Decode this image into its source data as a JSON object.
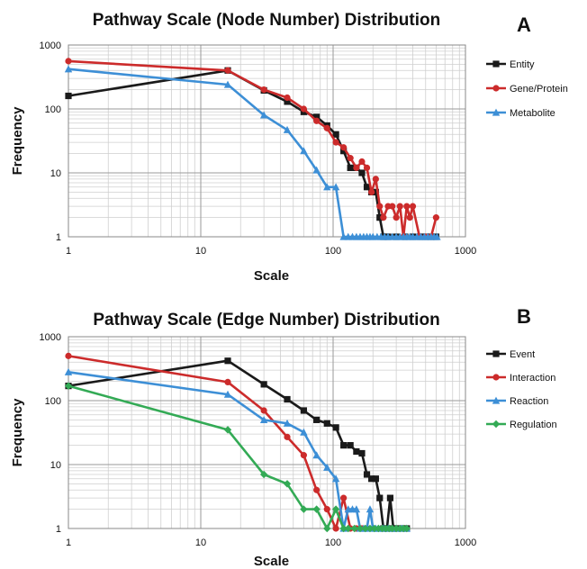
{
  "chart_data": [
    {
      "type": "line",
      "title": "Pathway Scale (Node Number) Distribution",
      "panel_label": "A",
      "xlabel": "Scale",
      "ylabel": "Frequency",
      "x_scale": "log",
      "y_scale": "log",
      "xlim": [
        1,
        1000
      ],
      "ylim": [
        1,
        1000
      ],
      "x_ticks": [
        "1",
        "10",
        "100",
        "1000"
      ],
      "y_ticks": [
        "1",
        "10",
        "100",
        "1000"
      ],
      "grid": true,
      "legend_position": "right",
      "series": [
        {
          "name": "Entity",
          "color": "#1a1a1a",
          "marker": "square",
          "x": [
            1,
            16,
            30,
            45,
            60,
            75,
            90,
            105,
            120,
            135,
            150,
            165,
            180,
            195,
            210,
            225,
            240,
            260,
            300,
            350,
            400,
            450,
            500,
            550,
            600
          ],
          "y": [
            160,
            400,
            195,
            130,
            90,
            75,
            55,
            40,
            22,
            12,
            12,
            10,
            6,
            5,
            5,
            2,
            1,
            1,
            1,
            1,
            1,
            1,
            1,
            1,
            1
          ]
        },
        {
          "name": "Gene/Protein",
          "color": "#cc2b2b",
          "marker": "circle",
          "x": [
            1,
            16,
            30,
            45,
            60,
            75,
            90,
            105,
            120,
            135,
            150,
            165,
            180,
            195,
            210,
            225,
            240,
            260,
            280,
            300,
            320,
            340,
            360,
            380,
            400,
            450,
            500,
            550,
            600
          ],
          "y": [
            560,
            400,
            200,
            150,
            100,
            65,
            50,
            30,
            25,
            17,
            12,
            15,
            12,
            5,
            8,
            3,
            2,
            3,
            3,
            2,
            3,
            1,
            3,
            2,
            3,
            1,
            1,
            1,
            2
          ]
        },
        {
          "name": "Metabolite",
          "color": "#3d8fd6",
          "marker": "triangle",
          "x": [
            1,
            16,
            30,
            45,
            60,
            75,
            90,
            105,
            120,
            130,
            140,
            150,
            160,
            170,
            180,
            190,
            200,
            215,
            230,
            245,
            260,
            280,
            300,
            320,
            340,
            360,
            380,
            400,
            430,
            460,
            490,
            520,
            550,
            580,
            610
          ],
          "y": [
            420,
            240,
            80,
            47,
            22,
            11,
            6,
            6,
            1,
            1,
            1,
            1,
            1,
            1,
            1,
            1,
            1,
            1,
            1,
            1,
            1,
            1,
            1,
            1,
            1,
            1,
            1,
            1,
            1,
            1,
            1,
            1,
            1,
            1,
            1
          ]
        }
      ]
    },
    {
      "type": "line",
      "title": "Pathway Scale (Edge Number) Distribution",
      "panel_label": "B",
      "xlabel": "Scale",
      "ylabel": "Frequency",
      "x_scale": "log",
      "y_scale": "log",
      "xlim": [
        1,
        1000
      ],
      "ylim": [
        1,
        1000
      ],
      "x_ticks": [
        "1",
        "10",
        "100",
        "1000"
      ],
      "y_ticks": [
        "1",
        "10",
        "100",
        "1000"
      ],
      "grid": true,
      "legend_position": "right",
      "series": [
        {
          "name": "Event",
          "color": "#1a1a1a",
          "marker": "square",
          "x": [
            1,
            16,
            30,
            45,
            60,
            75,
            90,
            105,
            120,
            135,
            150,
            165,
            180,
            195,
            210,
            225,
            240,
            255,
            270,
            285,
            300,
            330,
            360
          ],
          "y": [
            170,
            420,
            180,
            105,
            70,
            50,
            44,
            38,
            20,
            20,
            16,
            15,
            7,
            6,
            6,
            3,
            1,
            1,
            3,
            1,
            1,
            1,
            1
          ]
        },
        {
          "name": "Interaction",
          "color": "#cc2b2b",
          "marker": "circle",
          "x": [
            1,
            16,
            30,
            45,
            60,
            75,
            90,
            105,
            120,
            135,
            150,
            165,
            180
          ],
          "y": [
            500,
            195,
            70,
            27,
            14,
            4,
            2,
            1,
            3,
            1,
            1,
            1,
            1
          ]
        },
        {
          "name": "Reaction",
          "color": "#3d8fd6",
          "marker": "triangle",
          "x": [
            1,
            16,
            30,
            45,
            60,
            75,
            90,
            105,
            120,
            130,
            140,
            150,
            160,
            170,
            180,
            190,
            200,
            210,
            220,
            240,
            260,
            280,
            300,
            330,
            360
          ],
          "y": [
            280,
            125,
            50,
            44,
            32,
            14,
            9,
            6,
            1,
            2,
            2,
            2,
            1,
            1,
            1,
            2,
            1,
            1,
            1,
            1,
            1,
            1,
            1,
            1,
            1
          ]
        },
        {
          "name": "Regulation",
          "color": "#33aa55",
          "marker": "diamond",
          "x": [
            1,
            16,
            30,
            45,
            60,
            75,
            90,
            105,
            120,
            130,
            145,
            160,
            175,
            190,
            205,
            220,
            235,
            250,
            265,
            280,
            300,
            320,
            340,
            360
          ],
          "y": [
            170,
            35,
            7,
            5,
            2,
            2,
            1,
            2,
            1,
            1,
            1,
            1,
            1,
            1,
            1,
            1,
            1,
            1,
            1,
            1,
            1,
            1,
            1,
            1
          ]
        }
      ]
    }
  ]
}
